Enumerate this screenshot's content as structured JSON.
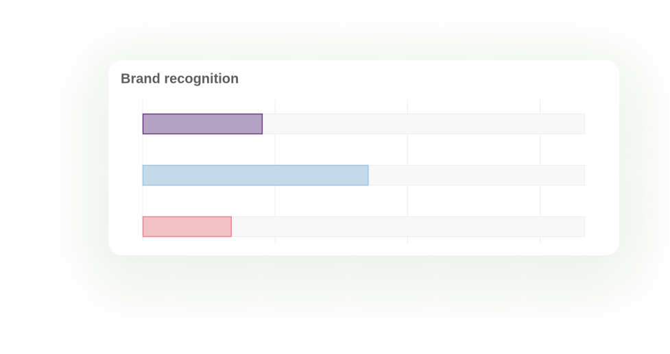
{
  "chart_data": {
    "type": "hbar",
    "title": "Brand recognition",
    "categories": [
      null,
      null,
      null
    ],
    "values": [
      27,
      51,
      20
    ],
    "colors": [
      "#b4a4c4",
      "#c6dbea",
      "#f1c1c5"
    ],
    "stroke_colors": [
      "#6c3c88",
      "#9fc5e6",
      "#e08c92"
    ],
    "xlim": [
      0,
      100
    ],
    "xticks": [
      0,
      30,
      60,
      90
    ],
    "grid": true
  }
}
